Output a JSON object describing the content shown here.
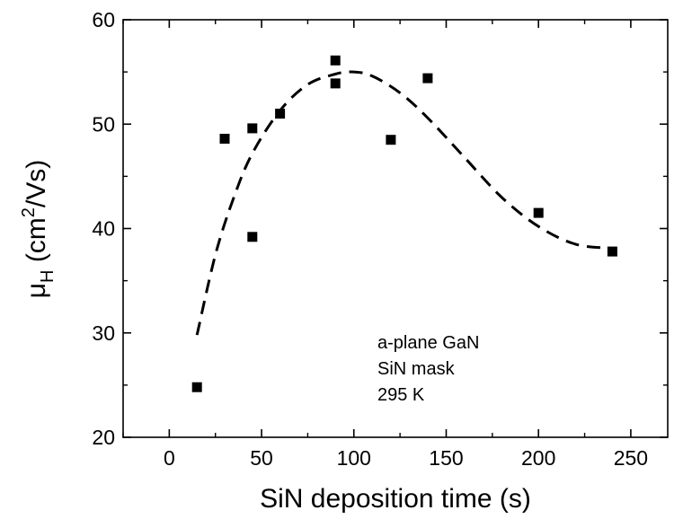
{
  "chart_data": {
    "type": "scatter",
    "xlabel": "SiN deposition time (s)",
    "ylabel": {
      "symbol": "μ",
      "subscript": "H",
      "unit_prefix": " (cm",
      "superscript": "2",
      "unit_suffix": "/Vs)"
    },
    "xlim": [
      -25,
      270
    ],
    "ylim": [
      20,
      60
    ],
    "xticks": [
      0,
      50,
      100,
      150,
      200,
      250
    ],
    "yticks": [
      20,
      30,
      40,
      50,
      60
    ],
    "grid": false,
    "series": [
      {
        "marker": "filled-square",
        "color": "#000000",
        "points": [
          {
            "x": 15,
            "y": 24.8
          },
          {
            "x": 30,
            "y": 48.6
          },
          {
            "x": 45,
            "y": 49.6
          },
          {
            "x": 45,
            "y": 39.2
          },
          {
            "x": 60,
            "y": 51.0
          },
          {
            "x": 90,
            "y": 56.1
          },
          {
            "x": 90,
            "y": 53.9
          },
          {
            "x": 120,
            "y": 48.5
          },
          {
            "x": 140,
            "y": 54.4
          },
          {
            "x": 200,
            "y": 41.5
          },
          {
            "x": 240,
            "y": 37.8
          }
        ]
      }
    ],
    "fit_curve": {
      "style": "dashed",
      "color": "#000000",
      "points": [
        {
          "x": 15,
          "y": 29.8
        },
        {
          "x": 25,
          "y": 37.5
        },
        {
          "x": 35,
          "y": 43.0
        },
        {
          "x": 45,
          "y": 47.2
        },
        {
          "x": 60,
          "y": 51.3
        },
        {
          "x": 75,
          "y": 53.8
        },
        {
          "x": 90,
          "y": 54.8
        },
        {
          "x": 100,
          "y": 55.0
        },
        {
          "x": 110,
          "y": 54.6
        },
        {
          "x": 125,
          "y": 53.0
        },
        {
          "x": 140,
          "y": 50.6
        },
        {
          "x": 160,
          "y": 46.8
        },
        {
          "x": 180,
          "y": 43.0
        },
        {
          "x": 200,
          "y": 40.2
        },
        {
          "x": 220,
          "y": 38.5
        },
        {
          "x": 240,
          "y": 38.1
        }
      ]
    },
    "annotation": [
      "a-plane GaN",
      "SiN mask",
      "295 K"
    ]
  }
}
